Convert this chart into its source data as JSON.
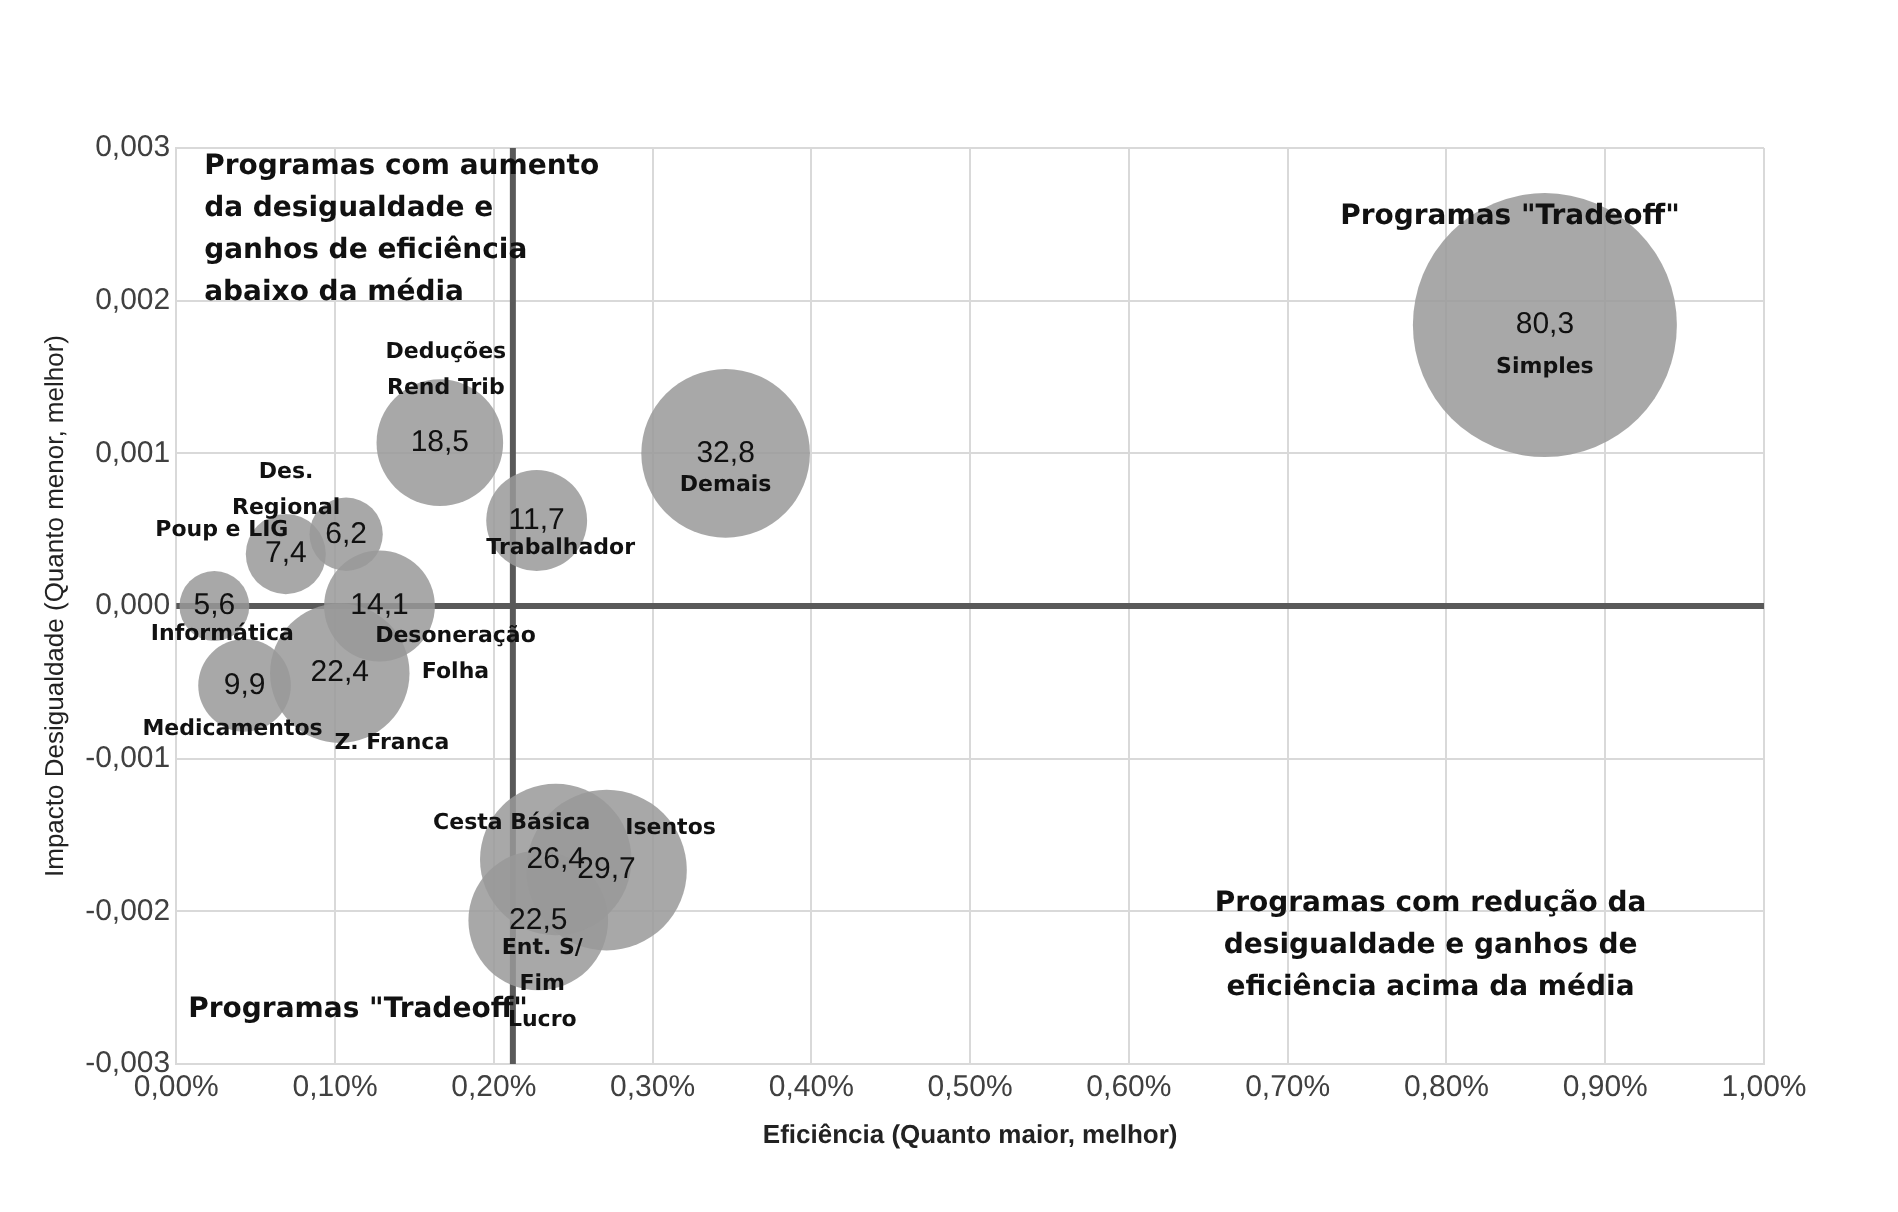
{
  "chart_data": {
    "type": "bubble",
    "xlabel": "Eficiência (Quanto maior, melhor)",
    "ylabel": "Impacto Desigualdade (Quanto menor, melhor)",
    "xlim": [
      0,
      1
    ],
    "ylim": [
      -0.003,
      0.003
    ],
    "xticks": [
      {
        "value": 0,
        "label": "0,00%"
      },
      {
        "value": 0.1,
        "label": "0,10%"
      },
      {
        "value": 0.2,
        "label": "0,20%"
      },
      {
        "value": 0.3,
        "label": "0,30%"
      },
      {
        "value": 0.4,
        "label": "0,40%"
      },
      {
        "value": 0.5,
        "label": "0,50%"
      },
      {
        "value": 0.6,
        "label": "0,60%"
      },
      {
        "value": 0.7,
        "label": "0,70%"
      },
      {
        "value": 0.8,
        "label": "0,80%"
      },
      {
        "value": 0.9,
        "label": "0,90%"
      },
      {
        "value": 1,
        "label": "1,00%"
      }
    ],
    "yticks": [
      {
        "value": -0.003,
        "label": "-0,003"
      },
      {
        "value": -0.002,
        "label": "-0,002"
      },
      {
        "value": -0.001,
        "label": "-0,001"
      },
      {
        "value": 0,
        "label": "0,000"
      },
      {
        "value": 0.001,
        "label": "0,001"
      },
      {
        "value": 0.002,
        "label": "0,002"
      },
      {
        "value": 0.003,
        "label": "0,003"
      }
    ],
    "grid": true,
    "legend": false,
    "series": [
      {
        "name": "Simples",
        "color": "#999999",
        "x": [
          0.862
        ],
        "values": [
          0.00184
        ],
        "sizes": [
          1
        ]
      },
      {
        "name": "Demais",
        "color": "#999999",
        "x": [
          0.346
        ],
        "values": [
          0.001
        ],
        "sizes": [
          0.408
        ]
      },
      {
        "name": "Deduções Rend Trib",
        "color": "#999999",
        "x": [
          0.166
        ],
        "values": [
          0.00107
        ],
        "sizes": [
          0.23
        ]
      },
      {
        "name": "Trabalhador",
        "color": "#999999",
        "x": [
          0.227
        ],
        "values": [
          0.00056
        ],
        "sizes": [
          0.146
        ]
      },
      {
        "name": "Des. Regional",
        "color": "#999999",
        "x": [
          0.107
        ],
        "values": [
          0.00047
        ],
        "sizes": [
          0.077
        ]
      },
      {
        "name": "Poup e LIG",
        "color": "#999999",
        "x": [
          0.069
        ],
        "values": [
          0.00034
        ],
        "sizes": [
          0.092
        ]
      },
      {
        "name": "Informática",
        "color": "#999999",
        "x": [
          0.024
        ],
        "values": [
          0
        ],
        "sizes": [
          0.07
        ]
      },
      {
        "name": "Desoneração Folha",
        "color": "#999999",
        "x": [
          0.128
        ],
        "values": [
          0
        ],
        "sizes": [
          0.176
        ]
      },
      {
        "name": "Medicamentos",
        "color": "#999999",
        "x": [
          0.043
        ],
        "values": [
          -0.00052
        ],
        "sizes": [
          0.123
        ]
      },
      {
        "name": "Z. Franca",
        "color": "#999999",
        "x": [
          0.103
        ],
        "values": [
          -0.00044
        ],
        "sizes": [
          0.279
        ]
      },
      {
        "name": "Cesta Básica",
        "color": "#999999",
        "x": [
          0.239
        ],
        "values": [
          -0.00166
        ],
        "sizes": [
          0.329
        ]
      },
      {
        "name": "Isentos",
        "color": "#999999",
        "x": [
          0.271
        ],
        "values": [
          -0.00173
        ],
        "sizes": [
          0.37
        ]
      },
      {
        "name": "Ent. S/ Fim Lucro",
        "color": "#999999",
        "x": [
          0.228
        ],
        "values": [
          -0.00206
        ],
        "sizes": [
          0.28
        ]
      }
    ],
    "ref_lines": [
      {
        "axis": "x",
        "value": 0.212,
        "color": "#595959"
      },
      {
        "axis": "y",
        "value": 0,
        "color": "#595959"
      }
    ],
    "annotations": [
      "Programas com aumento da desigualdade e ganhos de eficiência abaixo da média",
      "Programas \"Tradeoff\"",
      "Programas com redução da desigualdade e ganhos de eficiência acima da média",
      "Programas \"Tradeoff\"",
      {
        "text": "80,3",
        "x": 0.862,
        "y": 0.00184
      },
      {
        "text": "32,8",
        "x": 0.346,
        "y": 0.001
      },
      {
        "text": "18,5",
        "x": 0.166,
        "y": 0.00107
      },
      {
        "text": "11,7",
        "x": 0.227,
        "y": 0.00056
      },
      {
        "text": "6,2",
        "x": 0.107,
        "y": 0.00047
      },
      {
        "text": "7,4",
        "x": 0.069,
        "y": 0.00034
      },
      {
        "text": "5,6",
        "x": 0.024,
        "y": 0
      },
      {
        "text": "14,1",
        "x": 0.128,
        "y": 0
      },
      {
        "text": "9,9",
        "x": 0.043,
        "y": -0.00052
      },
      {
        "text": "22,4",
        "x": 0.103,
        "y": -0.00044
      },
      {
        "text": "26,4",
        "x": 0.239,
        "y": -0.00166
      },
      {
        "text": "29,7",
        "x": 0.271,
        "y": -0.00173
      },
      {
        "text": "22,5",
        "x": 0.228,
        "y": -0.00206
      }
    ]
  }
}
